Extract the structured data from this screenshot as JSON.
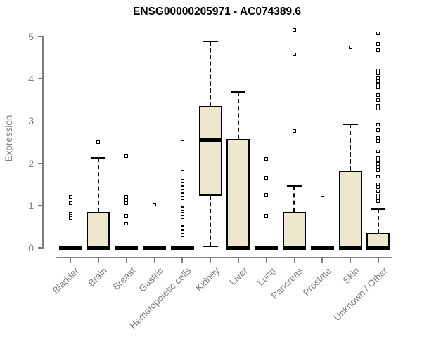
{
  "colors": {
    "box_fill": "#ece7cd",
    "line": "#000000",
    "axis": "#7d7d7d",
    "tick_label": "#808080",
    "title": "#000000",
    "background": "#ffffff",
    "outlier_fill": "#ffffff"
  },
  "chart_data": {
    "type": "boxplot",
    "title": "ENSG00000205971 - AC074389.6",
    "xlabel": "",
    "ylabel": "Expression",
    "ylim": [
      0,
      5
    ],
    "yticks": [
      0,
      1,
      2,
      3,
      4,
      5
    ],
    "grid": false,
    "legend": "none",
    "x_tick_label_rotation_deg": 45,
    "categories": [
      "Bladder",
      "Brain",
      "Breast",
      "Gastric",
      "Hematopoietic cells",
      "Kidney",
      "Liver",
      "Lung",
      "Pancreas",
      "Prostate",
      "Skin",
      "Unknown / Other"
    ],
    "series": [
      {
        "name": "Bladder",
        "q1": 0,
        "median": 0,
        "q3": 0,
        "whisker_low": 0,
        "whisker_high": 0,
        "outliers": [
          1.21,
          1.05,
          0.81,
          0.76,
          0.7
        ]
      },
      {
        "name": "Brain",
        "q1": 0,
        "median": 0,
        "q3": 0.85,
        "whisker_low": 0,
        "whisker_high": 2.13,
        "outliers": [
          2.5
        ]
      },
      {
        "name": "Breast",
        "q1": 0,
        "median": 0,
        "q3": 0,
        "whisker_low": 0,
        "whisker_high": 0,
        "outliers": [
          2.17,
          1.21,
          1.13,
          1.05,
          0.76,
          0.58
        ]
      },
      {
        "name": "Gastric",
        "q1": 0,
        "median": 0,
        "q3": 0,
        "whisker_low": 0,
        "whisker_high": 0,
        "outliers": [
          1.02
        ]
      },
      {
        "name": "Hematopoietic cells",
        "q1": 0,
        "median": 0,
        "q3": 0,
        "whisker_low": 0,
        "whisker_high": 0,
        "outliers": [
          2.57,
          1.81,
          1.58,
          1.5,
          1.42,
          1.33,
          1.25,
          1.17,
          1.01,
          0.93,
          0.8,
          0.72,
          0.63,
          0.55,
          0.47,
          0.38,
          0.3
        ]
      },
      {
        "name": "Kidney",
        "q1": 1.23,
        "median": 2.55,
        "q3": 3.35,
        "whisker_low": 0.03,
        "whisker_high": 4.88,
        "outliers": []
      },
      {
        "name": "Liver",
        "q1": 0,
        "median": 0,
        "q3": 2.58,
        "whisker_low": 0,
        "whisker_high": 3.68,
        "outliers": []
      },
      {
        "name": "Lung",
        "q1": 0,
        "median": 0,
        "q3": 0,
        "whisker_low": 0,
        "whisker_high": 0,
        "outliers": [
          2.1,
          1.66,
          1.25,
          0.75
        ]
      },
      {
        "name": "Pancreas",
        "q1": 0,
        "median": 0,
        "q3": 0.85,
        "whisker_low": 0,
        "whisker_high": 1.47,
        "outliers": [
          5.15,
          4.57,
          2.76
        ]
      },
      {
        "name": "Prostate",
        "q1": 0,
        "median": 0,
        "q3": 0,
        "whisker_low": 0,
        "whisker_high": 0,
        "outliers": [
          1.18
        ]
      },
      {
        "name": "Skin",
        "q1": 0,
        "median": 0,
        "q3": 1.83,
        "whisker_low": 0,
        "whisker_high": 2.92,
        "outliers": [
          4.75
        ]
      },
      {
        "name": "Unknown / Other",
        "q1": 0,
        "median": 0,
        "q3": 0.35,
        "whisker_low": 0,
        "whisker_high": 0.91,
        "outliers": [
          5.07,
          4.82,
          4.67,
          4.2,
          4.12,
          4.03,
          3.95,
          3.87,
          3.8,
          3.62,
          3.5,
          3.37,
          3.3,
          2.92,
          2.79,
          2.6,
          2.54,
          2.29,
          2.14,
          2.06,
          1.98,
          1.9,
          1.84,
          1.68,
          1.51,
          1.43,
          1.33,
          1.23,
          1.17,
          1.11
        ]
      }
    ]
  }
}
